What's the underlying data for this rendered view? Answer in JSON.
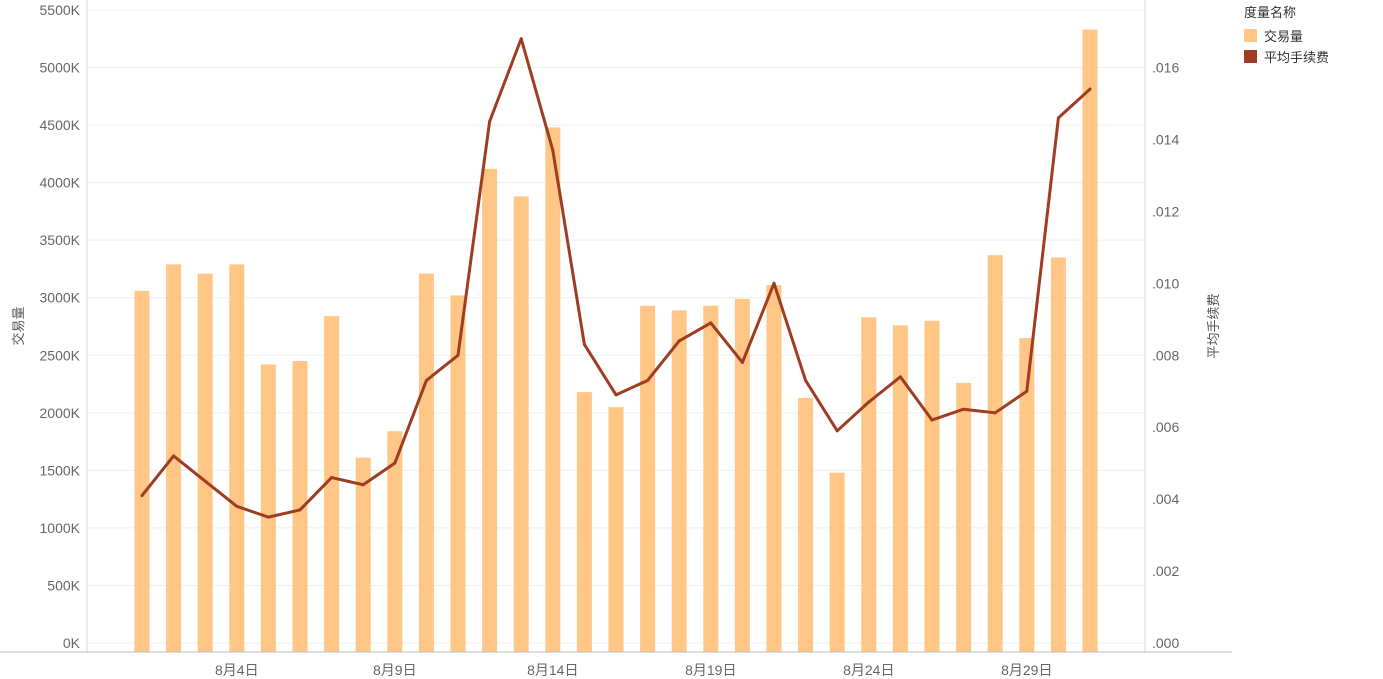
{
  "legend": {
    "title": "度量名称",
    "items": [
      {
        "label": "交易量",
        "color": "#FFC685"
      },
      {
        "label": "平均手续费",
        "color": "#9E3D22"
      }
    ]
  },
  "chart_data": {
    "type": "bar",
    "grid": true,
    "legend_position": "top-right",
    "x_tick_labels": [
      "8月4日",
      "8月9日",
      "8月14日",
      "8月19日",
      "8月24日",
      "8月29日"
    ],
    "x_tick_days": [
      4,
      9,
      14,
      19,
      24,
      29
    ],
    "x_days": [
      1,
      2,
      3,
      4,
      5,
      6,
      7,
      8,
      9,
      10,
      11,
      12,
      13,
      14,
      15,
      16,
      17,
      18,
      19,
      20,
      21,
      22,
      23,
      24,
      25,
      26,
      27,
      28,
      29,
      30,
      31
    ],
    "y_left": {
      "label": "交易量",
      "range": [
        0,
        5500000
      ],
      "ticks": [
        "0K",
        "500K",
        "1000K",
        "1500K",
        "2000K",
        "2500K",
        "3000K",
        "3500K",
        "4000K",
        "4500K",
        "5000K",
        "5500K"
      ]
    },
    "y_right": {
      "label": "平均手续费",
      "range": [
        0,
        0.0176
      ],
      "ticks": [
        ".000",
        ".002",
        ".004",
        ".006",
        ".008",
        ".010",
        ".012",
        ".014",
        ".016"
      ]
    },
    "series": [
      {
        "name": "交易量",
        "type": "bar",
        "axis": "left",
        "color": "#FFC685",
        "values": [
          3060000,
          3290000,
          3210000,
          3290000,
          2420000,
          2450000,
          2840000,
          1610000,
          1840000,
          3210000,
          3020000,
          4120000,
          3880000,
          4480000,
          2180000,
          2050000,
          2930000,
          2890000,
          2930000,
          2990000,
          3110000,
          2130000,
          1480000,
          2830000,
          2760000,
          2800000,
          2260000,
          3370000,
          2650000,
          3350000,
          5330000
        ]
      },
      {
        "name": "平均手续费",
        "type": "line",
        "axis": "right",
        "color": "#9E3D22",
        "values": [
          0.0041,
          0.0052,
          0.0045,
          0.0038,
          0.0035,
          0.0037,
          0.0046,
          0.0044,
          0.005,
          0.0073,
          0.008,
          0.0145,
          0.0168,
          0.0137,
          0.0083,
          0.0069,
          0.0073,
          0.0084,
          0.0089,
          0.0078,
          0.01,
          0.0073,
          0.0059,
          0.0067,
          0.0074,
          0.0062,
          0.0065,
          0.0064,
          0.007,
          0.0146,
          0.0154
        ]
      }
    ]
  }
}
